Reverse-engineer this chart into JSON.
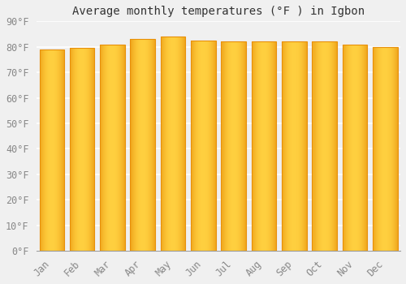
{
  "months": [
    "Jan",
    "Feb",
    "Mar",
    "Apr",
    "May",
    "Jun",
    "Jul",
    "Aug",
    "Sep",
    "Oct",
    "Nov",
    "Dec"
  ],
  "values": [
    79,
    79.5,
    81,
    83,
    84,
    82.5,
    82,
    82,
    82,
    82,
    81,
    80
  ],
  "title": "Average monthly temperatures (°F ) in Igbon",
  "ylim": [
    0,
    90
  ],
  "yticks": [
    0,
    10,
    20,
    30,
    40,
    50,
    60,
    70,
    80,
    90
  ],
  "ytick_labels": [
    "0°F",
    "10°F",
    "20°F",
    "30°F",
    "40°F",
    "50°F",
    "60°F",
    "70°F",
    "80°F",
    "90°F"
  ],
  "bar_color_center": "#FFD040",
  "bar_color_edge": "#E8900A",
  "background_color": "#F0F0F0",
  "grid_color": "#FFFFFF",
  "title_fontsize": 10,
  "tick_fontsize": 8.5,
  "bar_width": 0.82
}
